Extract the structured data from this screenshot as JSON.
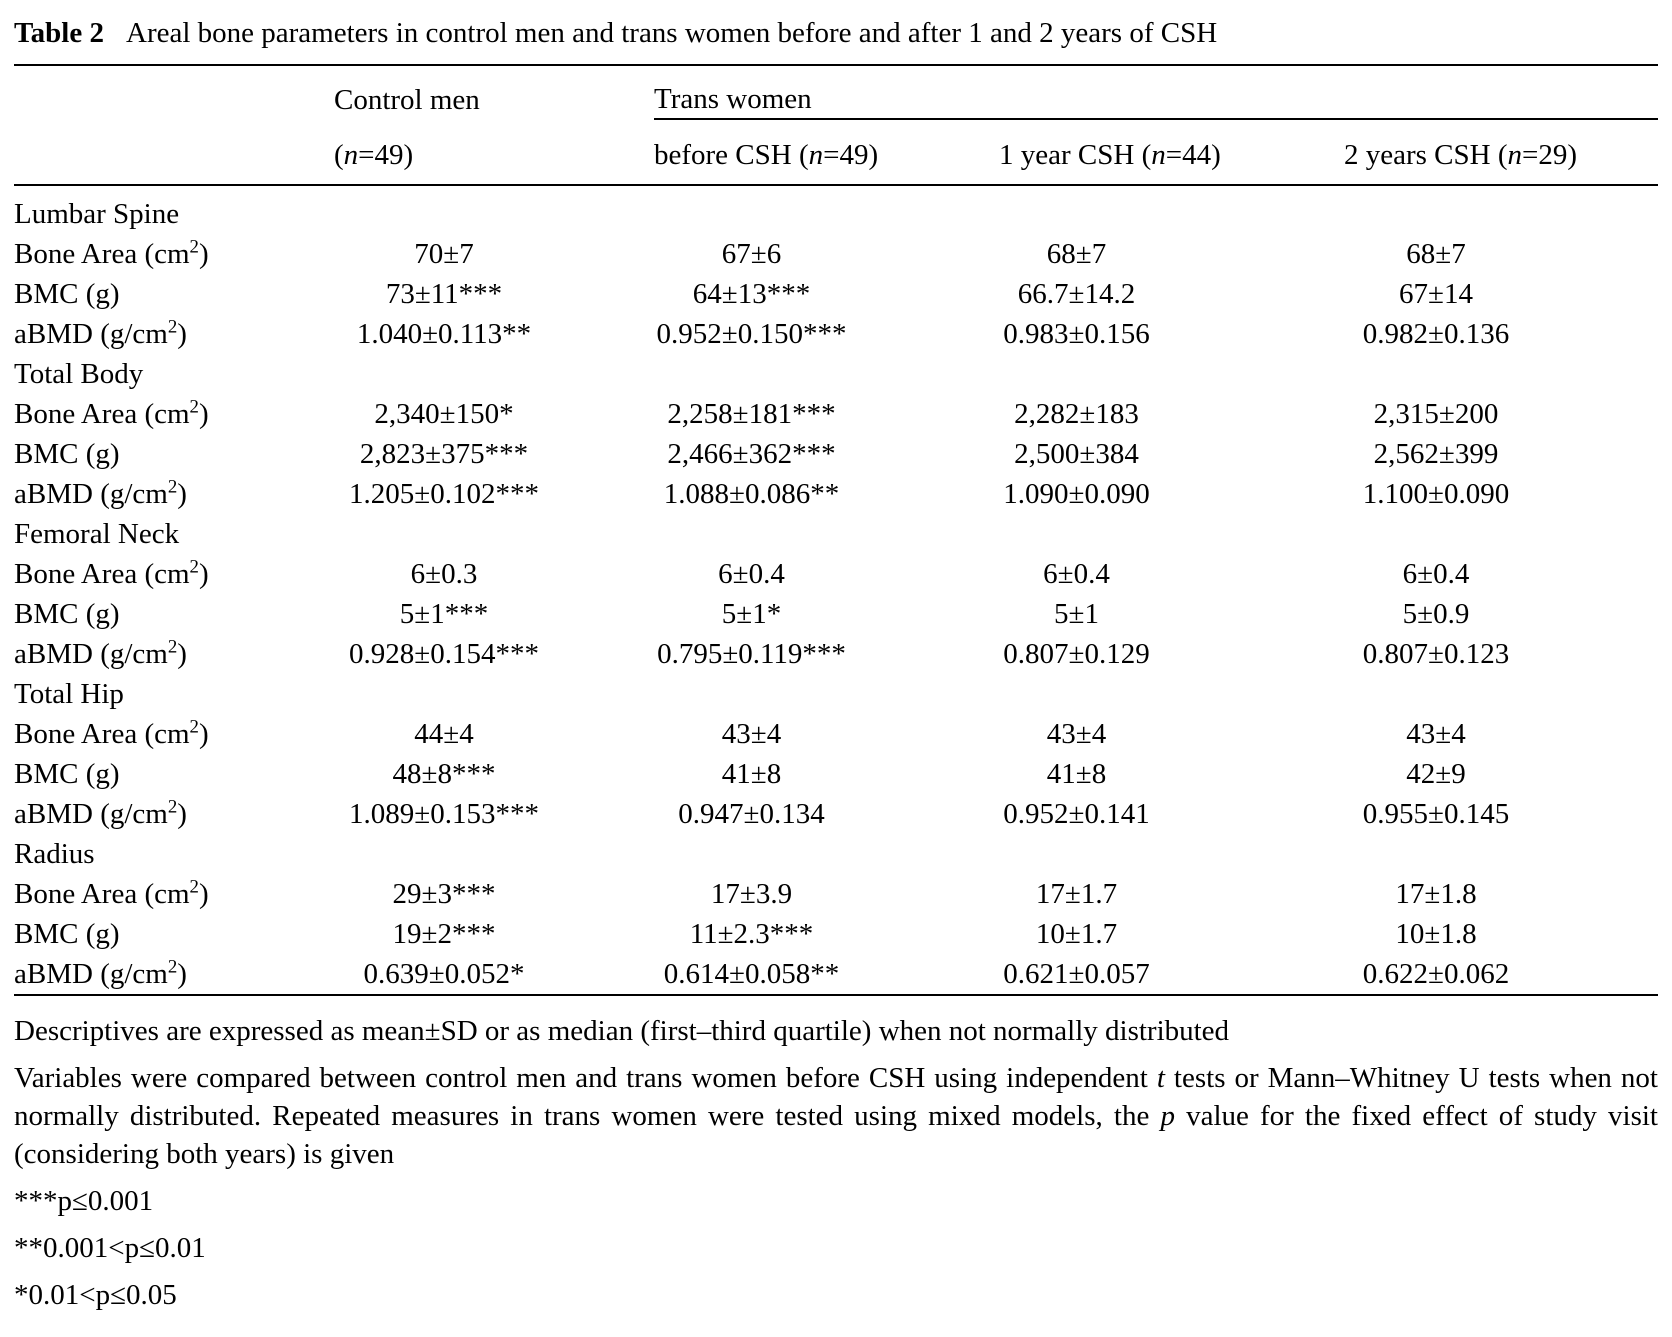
{
  "caption": {
    "label": "Table 2",
    "text": "Areal bone parameters in control men and trans women before and after 1 and 2 years of CSH"
  },
  "table": {
    "header": {
      "control_men": "Control men",
      "trans_women": "Trans women",
      "sub_headers": [
        "(<i>n</i>=49)",
        "before CSH (<i>n</i>=49)",
        "1 year CSH (<i>n</i>=44)",
        "2 years CSH (<i>n</i>=29)"
      ]
    },
    "rows": [
      {
        "section": "Lumbar Spine"
      },
      {
        "label": "Bone Area (cm<sup>2</sup>)",
        "values": [
          "70±7",
          "67±6",
          "68±7",
          "68±7"
        ]
      },
      {
        "label": "BMC (g)",
        "values": [
          "73±11***",
          "64±13***",
          "66.7±14.2",
          "67±14"
        ]
      },
      {
        "label": "aBMD (g/cm<sup>2</sup>)",
        "values": [
          "1.040±0.113**",
          "0.952±0.150***",
          "0.983±0.156",
          "0.982±0.136"
        ]
      },
      {
        "section": "Total Body"
      },
      {
        "label": "Bone Area (cm<sup>2</sup>)",
        "values": [
          "2,340±150*",
          "2,258±181***",
          "2,282±183",
          "2,315±200"
        ]
      },
      {
        "label": "BMC (g)",
        "values": [
          "2,823±375***",
          "2,466±362***",
          "2,500±384",
          "2,562±399"
        ]
      },
      {
        "label": "aBMD (g/cm<sup>2</sup>)",
        "values": [
          "1.205±0.102***",
          "1.088±0.086**",
          "1.090±0.090",
          "1.100±0.090"
        ]
      },
      {
        "section": "Femoral Neck"
      },
      {
        "label": "Bone Area (cm<sup>2</sup>)",
        "values": [
          "6±0.3",
          "6±0.4",
          "6±0.4",
          "6±0.4"
        ]
      },
      {
        "label": "BMC (g)",
        "values": [
          "5±1***",
          "5±1*",
          "5±1",
          "5±0.9"
        ]
      },
      {
        "label": "aBMD (g/cm<sup>2</sup>)",
        "values": [
          "0.928±0.154***",
          "0.795±0.119***",
          "0.807±0.129",
          "0.807±0.123"
        ]
      },
      {
        "section": "Total Hip"
      },
      {
        "label": "Bone Area (cm<sup>2</sup>)",
        "values": [
          "44±4",
          "43±4",
          "43±4",
          "43±4"
        ]
      },
      {
        "label": "BMC (g)",
        "values": [
          "48±8***",
          "41±8",
          "41±8",
          "42±9"
        ]
      },
      {
        "label": "aBMD (g/cm<sup>2</sup>)",
        "values": [
          "1.089±0.153***",
          "0.947±0.134",
          "0.952±0.141",
          "0.955±0.145"
        ]
      },
      {
        "section": "Radius"
      },
      {
        "label": "Bone Area (cm<sup>2</sup>)",
        "values": [
          "29±3***",
          "17±3.9",
          "17±1.7",
          "17±1.8"
        ]
      },
      {
        "label": "BMC (g)",
        "values": [
          "19±2***",
          "11±2.3***",
          "10±1.7",
          "10±1.8"
        ]
      },
      {
        "label": "aBMD (g/cm<sup>2</sup>)",
        "values": [
          "0.639±0.052*",
          "0.614±0.058**",
          "0.621±0.057",
          "0.622±0.062"
        ]
      }
    ]
  },
  "footnotes": [
    "Descriptives are expressed as mean±SD or as median (first–third quartile) when not normally distributed",
    "Variables were compared between control men and trans women before CSH using independent <i>t</i> tests or Mann–Whitney U tests when not normally distributed. Repeated measures in trans women were tested using mixed models, the <i>p</i> value for the fixed effect of study visit (considering both years) is given",
    "***p≤0.001",
    "**0.001&lt;p≤0.01",
    "*0.01&lt;p≤0.05"
  ]
}
